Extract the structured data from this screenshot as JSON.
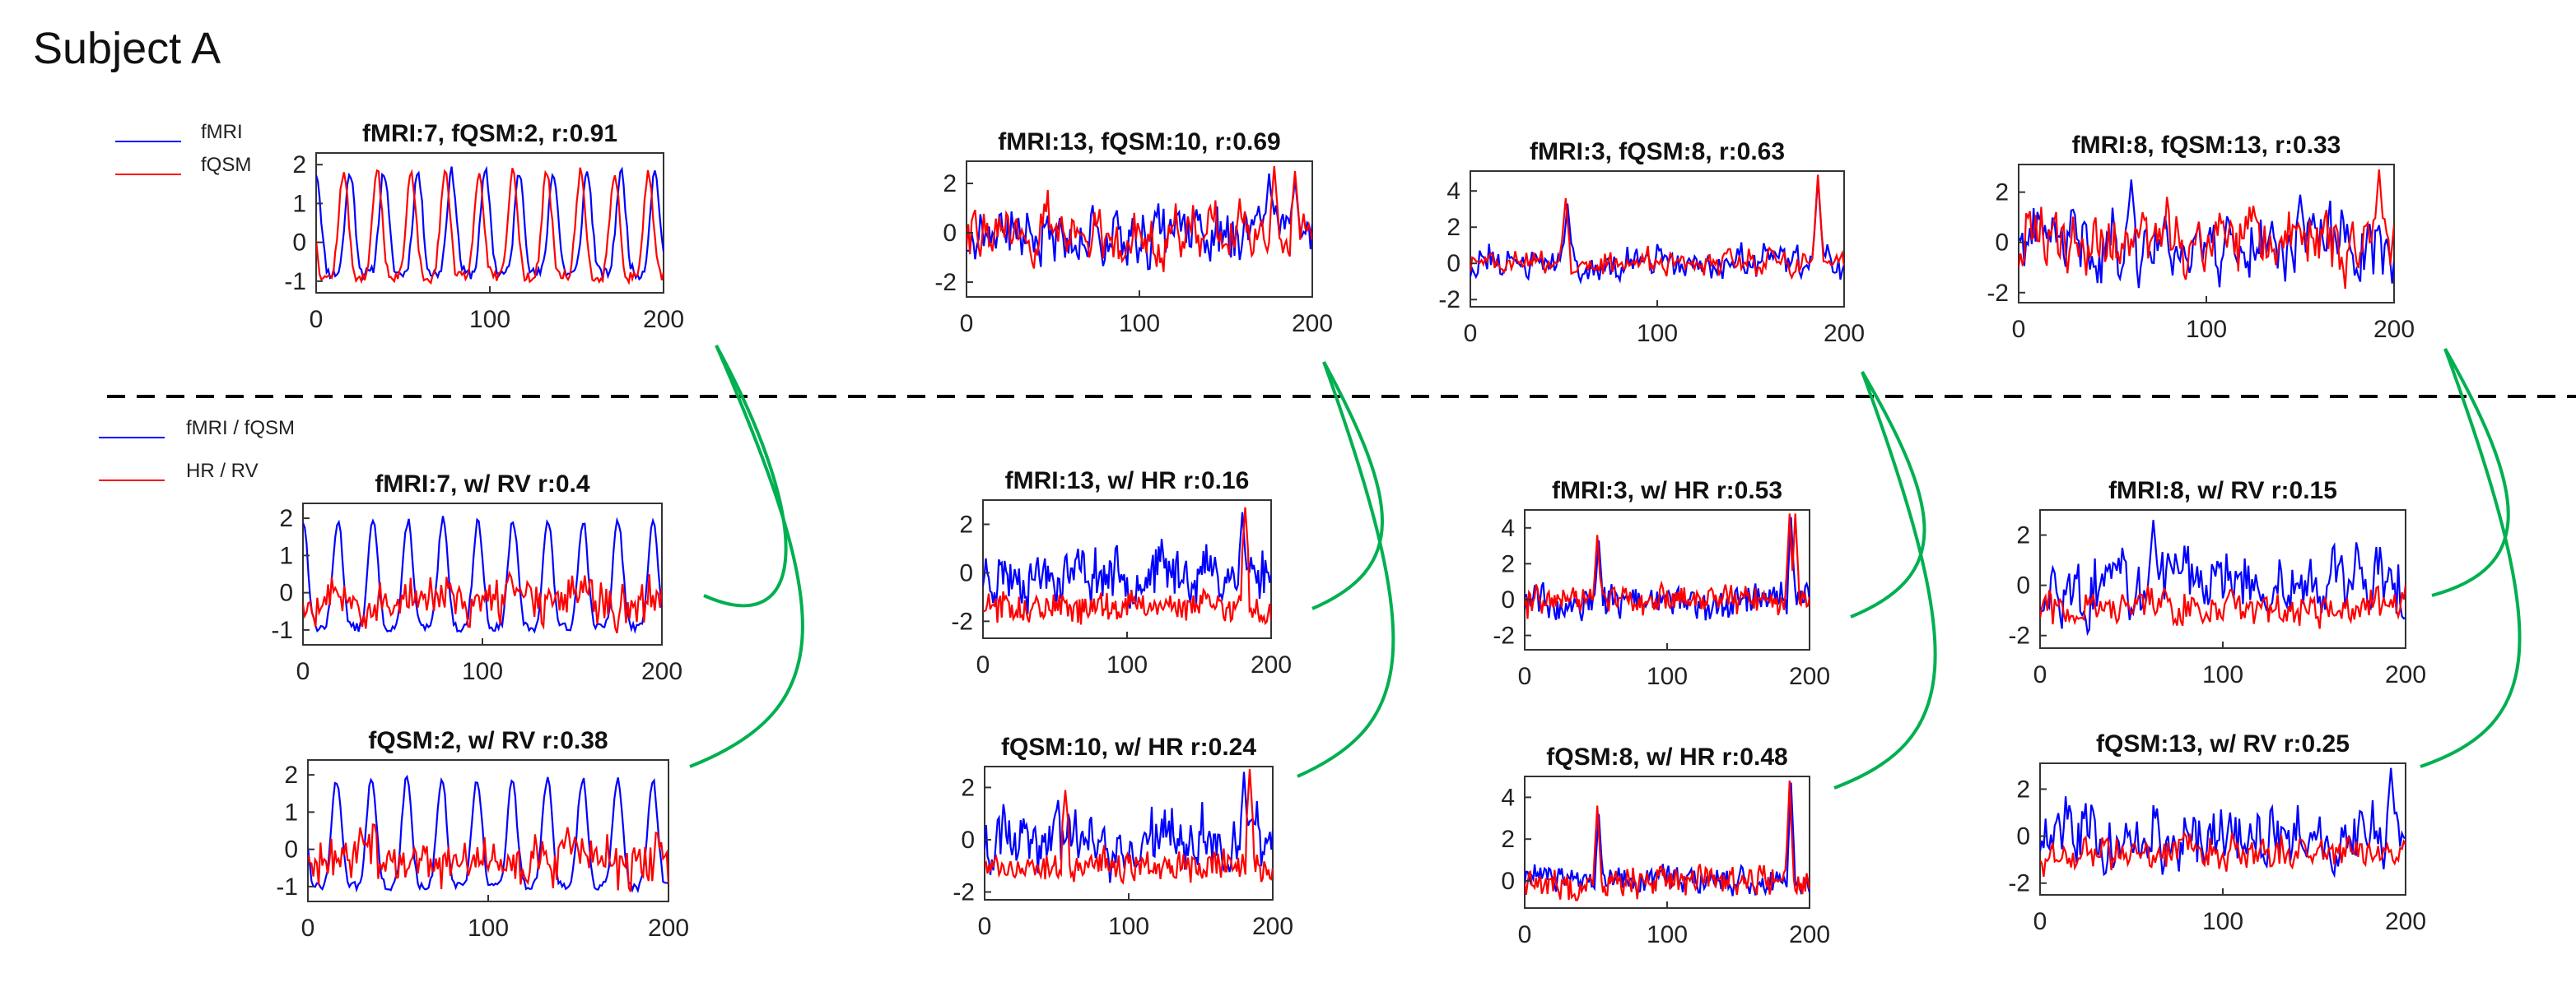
{
  "page_title": "Subject A",
  "top_legend": [
    {
      "label": "fMRI",
      "color": "#0000ff"
    },
    {
      "label": "fQSM",
      "color": "#ff0000"
    }
  ],
  "bottom_legend": [
    {
      "label": "fMRI / fQSM",
      "color": "#0000ff"
    },
    {
      "label": "HR / RV",
      "color": "#ff0000"
    }
  ],
  "colors": {
    "blue": "#0000ff",
    "red": "#ff0000",
    "connector": "#00b050",
    "frame": "#333333",
    "divider": "#000000"
  },
  "chart_data": [
    {
      "id": "t1",
      "type": "line",
      "title": "fMRI:7, fQSM:2, r:0.91",
      "xlim": [
        0,
        200
      ],
      "ylim": [
        -1.3,
        2.3
      ],
      "xticks": [
        0,
        100,
        200
      ],
      "yticks": [
        -1,
        0,
        1,
        2
      ],
      "series": [
        {
          "name": "fMRI",
          "color": "#0000ff",
          "kind": "periodic",
          "period": 19.5,
          "phase": 0.0,
          "amp": 1.45,
          "offset": 0.5,
          "noise": 0.15,
          "seed": 11
        },
        {
          "name": "fQSM",
          "color": "#ff0000",
          "kind": "periodic",
          "period": 19.5,
          "phase": 1.2,
          "amp": 1.5,
          "offset": 0.45,
          "noise": 0.15,
          "seed": 12
        }
      ]
    },
    {
      "id": "t2",
      "type": "line",
      "title": "fMRI:13, fQSM:10, r:0.69",
      "xlim": [
        0,
        200
      ],
      "ylim": [
        -2.6,
        2.9
      ],
      "xticks": [
        0,
        100,
        200
      ],
      "yticks": [
        -2,
        0,
        2
      ],
      "series": [
        {
          "name": "fMRI",
          "color": "#0000ff",
          "kind": "noise",
          "amp": 0.75,
          "noise": 0.55,
          "seed": 21,
          "peaks": [
            [
              175,
              2.4
            ],
            [
              190,
              2.2
            ]
          ]
        },
        {
          "name": "fQSM",
          "color": "#ff0000",
          "kind": "noise",
          "amp": 0.75,
          "noise": 0.45,
          "seed": 22,
          "peaks": [
            [
              178,
              2.7
            ],
            [
              190,
              2.5
            ]
          ]
        }
      ]
    },
    {
      "id": "t3",
      "type": "line",
      "title": "fMRI:3, fQSM:8, r:0.63",
      "xlim": [
        0,
        200
      ],
      "ylim": [
        -2.4,
        5.1
      ],
      "xticks": [
        0,
        100,
        200
      ],
      "yticks": [
        -2,
        0,
        2,
        4
      ],
      "series": [
        {
          "name": "fMRI",
          "color": "#0000ff",
          "kind": "noise",
          "amp": 0.55,
          "noise": 0.55,
          "seed": 31,
          "peaks": [
            [
              52,
              3.3
            ],
            [
              186,
              4.7
            ]
          ]
        },
        {
          "name": "fQSM",
          "color": "#ff0000",
          "kind": "noise",
          "amp": 0.45,
          "noise": 0.35,
          "seed": 32,
          "peaks": [
            [
              51,
              3.6
            ],
            [
              186,
              4.9
            ]
          ]
        }
      ]
    },
    {
      "id": "t4",
      "type": "line",
      "title": "fMRI:8, fQSM:13, r:0.33",
      "xlim": [
        0,
        200
      ],
      "ylim": [
        -2.4,
        3.1
      ],
      "xticks": [
        0,
        100,
        200
      ],
      "yticks": [
        -2,
        0,
        2
      ],
      "series": [
        {
          "name": "fMRI",
          "color": "#0000ff",
          "kind": "noise",
          "amp": 0.95,
          "noise": 0.65,
          "seed": 41,
          "peaks": [
            [
              60,
              2.5
            ],
            [
              150,
              1.9
            ]
          ]
        },
        {
          "name": "fQSM",
          "color": "#ff0000",
          "kind": "noise",
          "amp": 0.95,
          "noise": 0.6,
          "seed": 42,
          "peaks": [
            [
              192,
              2.9
            ]
          ]
        }
      ]
    },
    {
      "id": "m1",
      "type": "line",
      "title": "fMRI:7, w/ RV r:0.4",
      "xlim": [
        0,
        200
      ],
      "ylim": [
        -1.4,
        2.4
      ],
      "xticks": [
        0,
        100,
        200
      ],
      "yticks": [
        -1,
        0,
        1,
        2
      ],
      "series": [
        {
          "name": "fMRI / fQSM",
          "color": "#0000ff",
          "kind": "periodic",
          "period": 19.5,
          "phase": 0.0,
          "amp": 1.6,
          "offset": 0.5,
          "noise": 0.12,
          "seed": 13
        },
        {
          "name": "HR / RV",
          "color": "#ff0000",
          "kind": "noise",
          "amp": 0.3,
          "noise": 0.45,
          "seed": 14,
          "offset": -0.2
        }
      ]
    },
    {
      "id": "m2",
      "type": "line",
      "title": "fMRI:13, w/ HR r:0.16",
      "xlim": [
        0,
        200
      ],
      "ylim": [
        -2.7,
        3.0
      ],
      "xticks": [
        0,
        100,
        200
      ],
      "yticks": [
        -2,
        0,
        2
      ],
      "series": [
        {
          "name": "fMRI / fQSM",
          "color": "#0000ff",
          "kind": "noise",
          "amp": 0.8,
          "noise": 0.5,
          "seed": 23,
          "peaks": [
            [
              180,
              2.5
            ]
          ]
        },
        {
          "name": "HR / RV",
          "color": "#ff0000",
          "kind": "noise",
          "amp": 0.3,
          "noise": 0.45,
          "seed": 24,
          "offset": -1.4,
          "peaks": [
            [
              182,
              2.7
            ]
          ]
        }
      ]
    },
    {
      "id": "m3",
      "type": "line",
      "title": "fMRI:3, w/ HR r:0.53",
      "xlim": [
        0,
        200
      ],
      "ylim": [
        -2.8,
        5.0
      ],
      "xticks": [
        0,
        100,
        200
      ],
      "yticks": [
        -2,
        0,
        2,
        4
      ],
      "series": [
        {
          "name": "fMRI / fQSM",
          "color": "#0000ff",
          "kind": "noise",
          "amp": 0.45,
          "noise": 0.65,
          "seed": 33,
          "peaks": [
            [
              52,
              3.3
            ],
            [
              187,
              4.6
            ]
          ]
        },
        {
          "name": "HR / RV",
          "color": "#ff0000",
          "kind": "noise",
          "amp": 0.35,
          "noise": 0.6,
          "seed": 34,
          "peaks": [
            [
              51,
              3.6
            ],
            [
              186,
              4.8
            ],
            [
              190,
              4.8
            ]
          ]
        }
      ]
    },
    {
      "id": "m4",
      "type": "line",
      "title": "fMRI:8, w/ RV r:0.15",
      "xlim": [
        0,
        200
      ],
      "ylim": [
        -2.5,
        3.0
      ],
      "xticks": [
        0,
        100,
        200
      ],
      "yticks": [
        -2,
        0,
        2
      ],
      "series": [
        {
          "name": "fMRI / fQSM",
          "color": "#0000ff",
          "kind": "noise",
          "amp": 1.0,
          "noise": 0.6,
          "seed": 43,
          "peaks": [
            [
              62,
              2.6
            ]
          ]
        },
        {
          "name": "HR / RV",
          "color": "#ff0000",
          "kind": "noise",
          "amp": 0.35,
          "noise": 0.5,
          "seed": 44,
          "offset": -0.9
        }
      ]
    },
    {
      "id": "b1",
      "type": "line",
      "title": "fQSM:2, w/ RV r:0.38",
      "xlim": [
        0,
        200
      ],
      "ylim": [
        -1.4,
        2.4
      ],
      "xticks": [
        0,
        100,
        200
      ],
      "yticks": [
        -1,
        0,
        1,
        2
      ],
      "series": [
        {
          "name": "fMRI / fQSM",
          "color": "#0000ff",
          "kind": "periodic",
          "period": 19.5,
          "phase": 1.2,
          "amp": 1.6,
          "offset": 0.45,
          "noise": 0.12,
          "seed": 15
        },
        {
          "name": "HR / RV",
          "color": "#ff0000",
          "kind": "noise",
          "amp": 0.35,
          "noise": 0.5,
          "seed": 16,
          "offset": -0.2
        }
      ]
    },
    {
      "id": "b2",
      "type": "line",
      "title": "fQSM:10, w/ HR r:0.24",
      "xlim": [
        0,
        200
      ],
      "ylim": [
        -2.3,
        2.8
      ],
      "xticks": [
        0,
        100,
        200
      ],
      "yticks": [
        -2,
        0,
        2
      ],
      "series": [
        {
          "name": "fMRI / fQSM",
          "color": "#0000ff",
          "kind": "noise",
          "amp": 0.8,
          "noise": 0.45,
          "seed": 25,
          "peaks": [
            [
              180,
              2.6
            ]
          ]
        },
        {
          "name": "HR / RV",
          "color": "#ff0000",
          "kind": "noise",
          "amp": 0.25,
          "noise": 0.45,
          "seed": 26,
          "offset": -1.0,
          "peaks": [
            [
              56,
              1.9
            ],
            [
              184,
              2.7
            ]
          ]
        }
      ]
    },
    {
      "id": "b3",
      "type": "line",
      "title": "fQSM:8, w/ HR r:0.48",
      "xlim": [
        0,
        200
      ],
      "ylim": [
        -1.3,
        5.0
      ],
      "xticks": [
        0,
        100,
        200
      ],
      "yticks": [
        0,
        2,
        4
      ],
      "series": [
        {
          "name": "fMRI / fQSM",
          "color": "#0000ff",
          "kind": "noise",
          "amp": 0.4,
          "noise": 0.35,
          "seed": 35,
          "peaks": [
            [
              52,
              3.2
            ],
            [
              187,
              4.7
            ]
          ]
        },
        {
          "name": "HR / RV",
          "color": "#ff0000",
          "kind": "noise",
          "amp": 0.35,
          "noise": 0.55,
          "seed": 36,
          "peaks": [
            [
              51,
              3.6
            ],
            [
              186,
              4.8
            ]
          ]
        }
      ]
    },
    {
      "id": "b4",
      "type": "line",
      "title": "fQSM:13, w/ RV r:0.25",
      "xlim": [
        0,
        200
      ],
      "ylim": [
        -2.5,
        3.1
      ],
      "xticks": [
        0,
        100,
        200
      ],
      "yticks": [
        -2,
        0,
        2
      ],
      "series": [
        {
          "name": "fMRI / fQSM",
          "color": "#0000ff",
          "kind": "noise",
          "amp": 1.0,
          "noise": 0.55,
          "seed": 45,
          "peaks": [
            [
              192,
              2.9
            ]
          ]
        },
        {
          "name": "HR / RV",
          "color": "#ff0000",
          "kind": "noise",
          "amp": 0.35,
          "noise": 0.5,
          "seed": 46,
          "offset": -0.8
        }
      ]
    }
  ]
}
